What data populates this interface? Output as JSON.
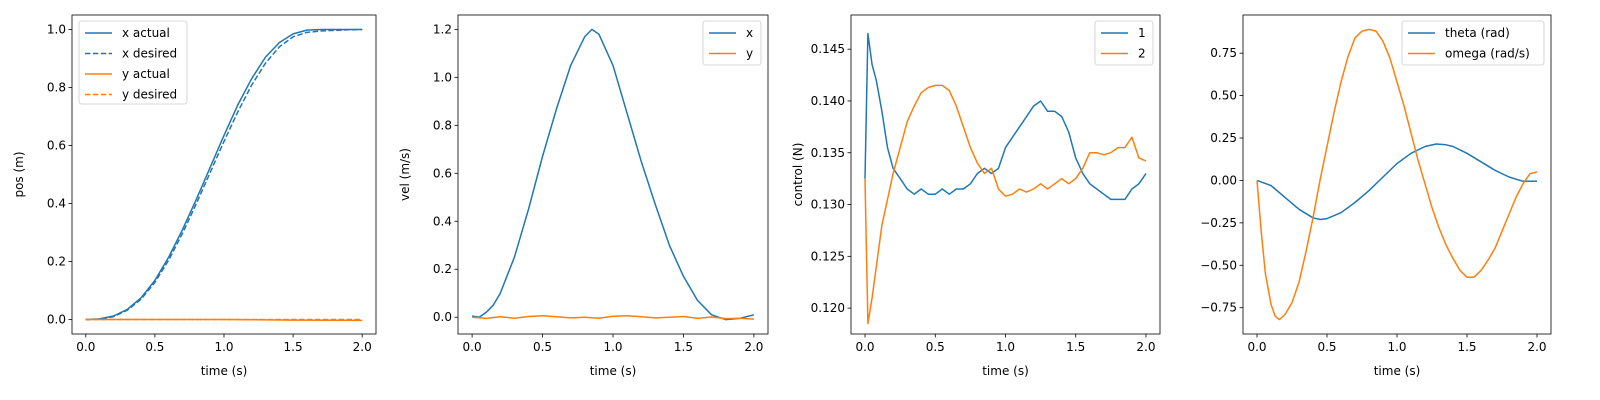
{
  "chart_data": [
    {
      "type": "line",
      "xlabel": "time (s)",
      "ylabel": "pos (m)",
      "xlim": [
        -0.1,
        2.1
      ],
      "ylim": [
        -0.05,
        1.05
      ],
      "xticks": [
        "0.0",
        "0.5",
        "1.0",
        "1.5",
        "2.0"
      ],
      "yticks": [
        "0.0",
        "0.2",
        "0.4",
        "0.6",
        "0.8",
        "1.0"
      ],
      "legend_position": "top-left",
      "series": [
        {
          "name": "x actual",
          "color": "#1f77b4",
          "dash": "solid",
          "x": [
            0,
            0.1,
            0.2,
            0.3,
            0.4,
            0.5,
            0.6,
            0.7,
            0.8,
            0.9,
            1.0,
            1.1,
            1.2,
            1.3,
            1.4,
            1.5,
            1.6,
            1.7,
            1.8,
            1.9,
            2.0
          ],
          "y": [
            0.0,
            0.002,
            0.012,
            0.035,
            0.075,
            0.135,
            0.215,
            0.31,
            0.415,
            0.525,
            0.635,
            0.74,
            0.83,
            0.905,
            0.955,
            0.985,
            0.998,
            1.0,
            1.0,
            1.0,
            1.0
          ]
        },
        {
          "name": "x desired",
          "color": "#1f77b4",
          "dash": "dashed",
          "x": [
            0,
            0.1,
            0.2,
            0.3,
            0.4,
            0.5,
            0.6,
            0.7,
            0.8,
            0.9,
            1.0,
            1.1,
            1.2,
            1.3,
            1.4,
            1.5,
            1.6,
            1.7,
            1.8,
            1.9,
            2.0
          ],
          "y": [
            0.0,
            0.001,
            0.01,
            0.032,
            0.07,
            0.128,
            0.205,
            0.297,
            0.4,
            0.507,
            0.614,
            0.716,
            0.808,
            0.884,
            0.94,
            0.975,
            0.99,
            0.995,
            0.997,
            0.999,
            1.0
          ]
        },
        {
          "name": "y actual",
          "color": "#ff7f0e",
          "dash": "solid",
          "x": [
            0,
            0.5,
            1.0,
            1.5,
            2.0
          ],
          "y": [
            0.0,
            0.0,
            0.0,
            -0.002,
            -0.003
          ]
        },
        {
          "name": "y desired",
          "color": "#ff7f0e",
          "dash": "dashed",
          "x": [
            0,
            0.5,
            1.0,
            1.5,
            2.0
          ],
          "y": [
            0.0,
            0.0,
            0.0,
            0.0,
            0.0
          ]
        }
      ]
    },
    {
      "type": "line",
      "xlabel": "time (s)",
      "ylabel": "vel (m/s)",
      "xlim": [
        -0.1,
        2.1
      ],
      "ylim": [
        -0.07,
        1.26
      ],
      "xticks": [
        "0.0",
        "0.5",
        "1.0",
        "1.5",
        "2.0"
      ],
      "yticks": [
        "0.0",
        "0.2",
        "0.4",
        "0.6",
        "0.8",
        "1.0",
        "1.2"
      ],
      "legend_position": "top-right",
      "series": [
        {
          "name": "x",
          "color": "#1f77b4",
          "dash": "solid",
          "x": [
            0,
            0.05,
            0.1,
            0.15,
            0.2,
            0.3,
            0.4,
            0.5,
            0.6,
            0.7,
            0.8,
            0.85,
            0.9,
            1.0,
            1.1,
            1.2,
            1.3,
            1.4,
            1.5,
            1.6,
            1.7,
            1.8,
            1.9,
            2.0
          ],
          "y": [
            0.005,
            0.0,
            0.02,
            0.05,
            0.1,
            0.25,
            0.45,
            0.67,
            0.87,
            1.05,
            1.17,
            1.2,
            1.18,
            1.05,
            0.85,
            0.65,
            0.47,
            0.3,
            0.17,
            0.07,
            0.01,
            -0.01,
            -0.005,
            0.01
          ]
        },
        {
          "name": "y",
          "color": "#ff7f0e",
          "dash": "solid",
          "x": [
            0,
            0.1,
            0.2,
            0.3,
            0.4,
            0.5,
            0.6,
            0.7,
            0.8,
            0.9,
            1.0,
            1.1,
            1.2,
            1.3,
            1.4,
            1.5,
            1.6,
            1.7,
            1.8,
            1.9,
            2.0
          ],
          "y": [
            0.0,
            -0.005,
            0.002,
            -0.004,
            0.003,
            0.006,
            0.002,
            -0.003,
            0.0,
            -0.004,
            0.004,
            0.006,
            0.002,
            -0.003,
            0.0,
            0.003,
            -0.005,
            0.001,
            -0.006,
            -0.004,
            -0.008
          ]
        }
      ]
    },
    {
      "type": "line",
      "xlabel": "time (s)",
      "ylabel": "control (N)",
      "xlim": [
        -0.1,
        2.1
      ],
      "ylim": [
        0.1175,
        0.1483
      ],
      "xticks": [
        "0.0",
        "0.5",
        "1.0",
        "1.5",
        "2.0"
      ],
      "yticks": [
        "0.120",
        "0.125",
        "0.130",
        "0.135",
        "0.140",
        "0.145"
      ],
      "legend_position": "top-right",
      "series": [
        {
          "name": "1",
          "color": "#1f77b4",
          "dash": "solid",
          "x": [
            0,
            0.02,
            0.05,
            0.08,
            0.12,
            0.16,
            0.2,
            0.25,
            0.3,
            0.35,
            0.4,
            0.45,
            0.5,
            0.55,
            0.6,
            0.65,
            0.7,
            0.75,
            0.8,
            0.85,
            0.9,
            0.95,
            1.0,
            1.05,
            1.1,
            1.15,
            1.2,
            1.25,
            1.3,
            1.35,
            1.4,
            1.45,
            1.5,
            1.55,
            1.6,
            1.65,
            1.7,
            1.75,
            1.8,
            1.85,
            1.9,
            1.95,
            2.0
          ],
          "y": [
            0.1325,
            0.1465,
            0.1435,
            0.142,
            0.139,
            0.1355,
            0.1335,
            0.1325,
            0.1315,
            0.131,
            0.1315,
            0.131,
            0.131,
            0.1315,
            0.131,
            0.1315,
            0.1315,
            0.132,
            0.133,
            0.1335,
            0.133,
            0.1335,
            0.1355,
            0.1365,
            0.1375,
            0.1385,
            0.1395,
            0.14,
            0.139,
            0.139,
            0.1385,
            0.137,
            0.1345,
            0.133,
            0.132,
            0.1315,
            0.131,
            0.1305,
            0.1305,
            0.1305,
            0.1315,
            0.132,
            0.133
          ]
        },
        {
          "name": "2",
          "color": "#ff7f0e",
          "dash": "solid",
          "x": [
            0,
            0.02,
            0.05,
            0.08,
            0.12,
            0.16,
            0.2,
            0.25,
            0.3,
            0.35,
            0.4,
            0.45,
            0.5,
            0.55,
            0.6,
            0.65,
            0.7,
            0.75,
            0.8,
            0.85,
            0.9,
            0.95,
            1.0,
            1.05,
            1.1,
            1.15,
            1.2,
            1.25,
            1.3,
            1.35,
            1.4,
            1.45,
            1.5,
            1.55,
            1.6,
            1.65,
            1.7,
            1.75,
            1.8,
            1.85,
            1.9,
            1.95,
            2.0
          ],
          "y": [
            0.1325,
            0.1185,
            0.121,
            0.124,
            0.128,
            0.1305,
            0.133,
            0.1355,
            0.138,
            0.1395,
            0.1408,
            0.1413,
            0.1415,
            0.1415,
            0.141,
            0.1395,
            0.1375,
            0.1355,
            0.134,
            0.133,
            0.1335,
            0.1315,
            0.1308,
            0.131,
            0.1315,
            0.1312,
            0.1315,
            0.132,
            0.1315,
            0.132,
            0.1325,
            0.132,
            0.1325,
            0.1335,
            0.135,
            0.135,
            0.1348,
            0.135,
            0.1355,
            0.1355,
            0.1365,
            0.1345,
            0.1342
          ]
        }
      ]
    },
    {
      "type": "line",
      "xlabel": "time (s)",
      "ylabel": "",
      "xlim": [
        -0.1,
        2.1
      ],
      "ylim": [
        -0.905,
        0.975
      ],
      "xticks": [
        "0.0",
        "0.5",
        "1.0",
        "1.5",
        "2.0"
      ],
      "yticks": [
        "−0.75",
        "−0.50",
        "−0.25",
        "0.00",
        "0.25",
        "0.50",
        "0.75"
      ],
      "legend_position": "top-right",
      "series": [
        {
          "name": "theta (rad)",
          "color": "#1f77b4",
          "dash": "solid",
          "x": [
            0,
            0.1,
            0.2,
            0.3,
            0.4,
            0.45,
            0.5,
            0.6,
            0.7,
            0.8,
            0.9,
            1.0,
            1.1,
            1.2,
            1.28,
            1.35,
            1.4,
            1.5,
            1.6,
            1.7,
            1.8,
            1.9,
            2.0
          ],
          "y": [
            0.0,
            -0.03,
            -0.1,
            -0.17,
            -0.22,
            -0.23,
            -0.225,
            -0.19,
            -0.13,
            -0.06,
            0.02,
            0.1,
            0.16,
            0.2,
            0.215,
            0.21,
            0.2,
            0.16,
            0.11,
            0.06,
            0.02,
            -0.005,
            -0.005
          ]
        },
        {
          "name": "omega (rad/s)",
          "color": "#ff7f0e",
          "dash": "solid",
          "x": [
            0,
            0.03,
            0.06,
            0.1,
            0.13,
            0.16,
            0.2,
            0.25,
            0.3,
            0.35,
            0.4,
            0.45,
            0.5,
            0.55,
            0.6,
            0.65,
            0.7,
            0.75,
            0.8,
            0.85,
            0.9,
            0.95,
            1.0,
            1.05,
            1.1,
            1.15,
            1.2,
            1.25,
            1.3,
            1.35,
            1.4,
            1.45,
            1.5,
            1.55,
            1.6,
            1.65,
            1.7,
            1.75,
            1.8,
            1.85,
            1.9,
            1.95,
            2.0
          ],
          "y": [
            0.0,
            -0.3,
            -0.55,
            -0.73,
            -0.8,
            -0.82,
            -0.79,
            -0.72,
            -0.6,
            -0.42,
            -0.22,
            0.0,
            0.2,
            0.4,
            0.58,
            0.73,
            0.84,
            0.88,
            0.89,
            0.88,
            0.82,
            0.72,
            0.58,
            0.44,
            0.28,
            0.12,
            -0.02,
            -0.16,
            -0.28,
            -0.38,
            -0.46,
            -0.53,
            -0.57,
            -0.57,
            -0.53,
            -0.47,
            -0.4,
            -0.3,
            -0.2,
            -0.1,
            -0.02,
            0.04,
            0.05
          ]
        }
      ]
    }
  ]
}
